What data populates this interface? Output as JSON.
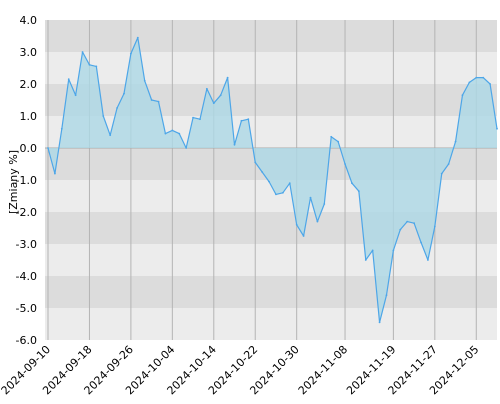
{
  "chart_data": {
    "type": "area",
    "ylabel": "[Zmiany %]",
    "xlabel": "",
    "ylim": [
      -6.0,
      4.0
    ],
    "y_ticks": [
      4.0,
      3.0,
      2.0,
      1.0,
      0.0,
      -1.0,
      -2.0,
      -3.0,
      -4.0,
      -5.0,
      -6.0
    ],
    "y_tick_labels": [
      "4.0",
      "3.0",
      "2.0",
      "1.0",
      "0.0",
      "-1.0",
      "-2.0",
      "-3.0",
      "-4.0",
      "-5.0",
      "-6.0"
    ],
    "x_tick_labels": [
      "2024-09-10",
      "2024-09-18",
      "2024-09-26",
      "2024-10-04",
      "2024-10-14",
      "2024-10-22",
      "2024-10-30",
      "2024-11-08",
      "2024-11-19",
      "2024-11-27",
      "2024-12-05"
    ],
    "x_tick_index": [
      0,
      6,
      12,
      18,
      24,
      30,
      36,
      43,
      50,
      56,
      62
    ],
    "grid": true,
    "colors": {
      "line": "#4da6e8",
      "fill": "#add8e6",
      "band_dark": "#dcdcdc",
      "band_light": "#ececec",
      "vgrid": "#b4b4b4",
      "zero": "#aaaaaa"
    },
    "series": [
      {
        "values": [
          0.0,
          -0.8,
          0.6,
          2.15,
          1.65,
          3.0,
          2.6,
          2.55,
          1.0,
          0.4,
          1.25,
          1.7,
          2.95,
          3.45,
          2.1,
          1.5,
          1.45,
          0.45,
          0.55,
          0.45,
          0.0,
          0.95,
          0.9,
          1.85,
          1.4,
          1.65,
          2.2,
          0.1,
          0.85,
          0.9,
          -0.45,
          -0.75,
          -1.05,
          -1.45,
          -1.4,
          -1.1,
          -2.4,
          -2.75,
          -1.55,
          -2.3,
          -1.75,
          0.35,
          0.2,
          -0.5,
          -1.1,
          -1.35,
          -3.5,
          -3.2,
          -5.45,
          -4.6,
          -3.2,
          -2.55,
          -2.3,
          -2.35,
          -2.95,
          -3.5,
          -2.45,
          -0.8,
          -0.5,
          0.2,
          1.65,
          2.05,
          2.2,
          2.2,
          2.0,
          0.6
        ]
      }
    ]
  }
}
